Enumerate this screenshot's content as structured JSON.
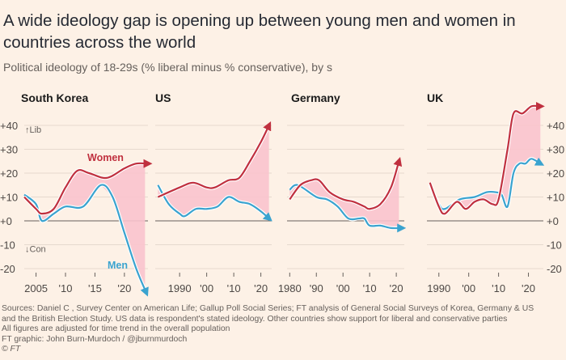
{
  "title": "A wide ideology gap is opening up between young men and women in countries across the world",
  "subtitle": "Political ideology of 18-29s (% liberal minus % conservative), by s",
  "footer": {
    "sources": "Sources: Daniel C  , Survey Center on American Life; Gallup Poll Social Series; FT analysis of General Social Surveys of Korea, Germany & US",
    "sources2": "and the British Election Study. US data is respondent's stated ideology. Other countries show support for liberal and conservative parties",
    "note": "All figures are adjusted for time trend in the overall population",
    "credit": "FT graphic: John Burn-Murdoch / @jburnmurdoch",
    "copyright": "© FT"
  },
  "colors": {
    "women": "#c0303f",
    "men": "#3aa3cf",
    "gap_fill": "#f9c3cd",
    "background": "#fdf1e6"
  },
  "chart_data": [
    {
      "type": "line",
      "title": "South Korea",
      "ylim": [
        -25,
        45
      ],
      "yticks": [
        "+40",
        "+30",
        "+20",
        "+10",
        "+0",
        "-10",
        "-20"
      ],
      "ytick_values": [
        40,
        30,
        20,
        10,
        0,
        -10,
        -20
      ],
      "y_annotations": {
        "lib": "Lib",
        "con": "Con"
      },
      "xticks": [
        "2005",
        "'10",
        "'15",
        "'20"
      ],
      "xtick_values": [
        2005,
        2010,
        2015,
        2020
      ],
      "xlim": [
        2003,
        2024
      ],
      "series": [
        {
          "name": "Women",
          "x": [
            2003,
            2005,
            2006,
            2008,
            2010,
            2012,
            2014,
            2017,
            2020,
            2022,
            2024
          ],
          "y": [
            10,
            5,
            3,
            5,
            14,
            21,
            20,
            18,
            22,
            24,
            24
          ]
        },
        {
          "name": "Men",
          "x": [
            2003,
            2005,
            2006,
            2008,
            2010,
            2013,
            2016,
            2018,
            2020,
            2022,
            2023.7
          ],
          "y": [
            11,
            7,
            0,
            3,
            6,
            6,
            15,
            10,
            -5,
            -20,
            -30
          ]
        }
      ]
    },
    {
      "type": "line",
      "title": "US",
      "ylim": [
        -25,
        45
      ],
      "xticks": [
        "1990",
        "'00",
        "'10",
        "'20"
      ],
      "xtick_values": [
        1990,
        2000,
        2010,
        2020
      ],
      "xlim": [
        1981,
        2024
      ],
      "series": [
        {
          "name": "Women",
          "x": [
            1982,
            1990,
            1995,
            2000,
            2003,
            2008,
            2012,
            2016,
            2020,
            2023
          ],
          "y": [
            10,
            14,
            16,
            14,
            14,
            17,
            18,
            25,
            33,
            40
          ]
        },
        {
          "name": "Men",
          "x": [
            1982,
            1986,
            1990,
            1992,
            1996,
            2000,
            2004,
            2008,
            2012,
            2016,
            2020,
            2023
          ],
          "y": [
            15,
            7,
            3,
            2,
            5,
            5,
            6,
            10,
            8,
            7,
            4,
            1
          ]
        }
      ]
    },
    {
      "type": "line",
      "title": "Germany",
      "ylim": [
        -25,
        45
      ],
      "xticks": [
        "1980",
        "'90",
        "'00",
        "'10",
        "'20"
      ],
      "xtick_values": [
        1980,
        1990,
        2000,
        2010,
        2020
      ],
      "xlim": [
        1979,
        2023
      ],
      "series": [
        {
          "name": "Women",
          "x": [
            1980,
            1984,
            1988,
            1991,
            1995,
            2000,
            2004,
            2008,
            2010,
            2014,
            2018,
            2021
          ],
          "y": [
            9,
            15,
            17,
            17,
            12,
            9,
            8,
            6,
            5,
            7,
            14,
            25
          ]
        },
        {
          "name": "Men",
          "x": [
            1980,
            1983,
            1990,
            1994,
            1998,
            2002,
            2006,
            2008,
            2010,
            2014,
            2018,
            2022
          ],
          "y": [
            13,
            15,
            10,
            9,
            6,
            1,
            1,
            1,
            -2,
            -2,
            -3,
            -3
          ]
        }
      ]
    },
    {
      "type": "line",
      "title": "UK",
      "ylim": [
        -25,
        45
      ],
      "yticks_right": [
        "+40",
        "+30",
        "+20",
        "+10",
        "+0",
        "-10",
        "-20"
      ],
      "xticks": [
        "1990",
        "'00",
        "'10",
        "'20"
      ],
      "xtick_values": [
        1990,
        2000,
        2010,
        2020
      ],
      "xlim": [
        1986,
        2025
      ],
      "series": [
        {
          "name": "Women",
          "x": [
            1987,
            1990,
            1992,
            1996,
            1999,
            2002,
            2005,
            2008,
            2010,
            2013,
            2015,
            2018,
            2021,
            2024
          ],
          "y": [
            16,
            6,
            3,
            8,
            5,
            8,
            9,
            7,
            9,
            30,
            45,
            45,
            48,
            48
          ]
        },
        {
          "name": "Men",
          "x": [
            1987,
            1990,
            1992,
            1997,
            2002,
            2006,
            2009,
            2011,
            2013,
            2015,
            2017,
            2019,
            2021,
            2024
          ],
          "y": [
            15,
            7,
            5,
            9,
            10,
            12,
            12,
            11,
            6,
            20,
            24,
            24,
            26,
            24
          ]
        }
      ]
    }
  ]
}
